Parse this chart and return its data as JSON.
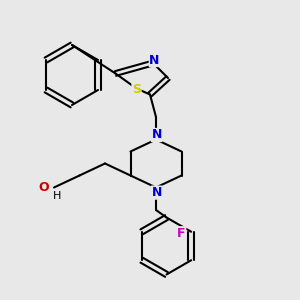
{
  "background_color": "#e8e8e8",
  "bond_color": "#000000",
  "bond_width": 1.5,
  "figsize": [
    3.0,
    3.0
  ],
  "dpi": 100,
  "atom_labels": {
    "N1": {
      "text": "N",
      "color": "#0000cc",
      "fontsize": 9,
      "fontweight": "bold"
    },
    "N2": {
      "text": "N",
      "color": "#0000cc",
      "fontsize": 9,
      "fontweight": "bold"
    },
    "S": {
      "text": "S",
      "color": "#cccc00",
      "fontsize": 9,
      "fontweight": "bold"
    },
    "O": {
      "text": "O",
      "color": "#cc0000",
      "fontsize": 9,
      "fontweight": "bold"
    },
    "H_O": {
      "text": "H",
      "color": "#000000",
      "fontsize": 8
    },
    "F": {
      "text": "F",
      "color": "#cc00cc",
      "fontsize": 9,
      "fontweight": "bold"
    }
  }
}
